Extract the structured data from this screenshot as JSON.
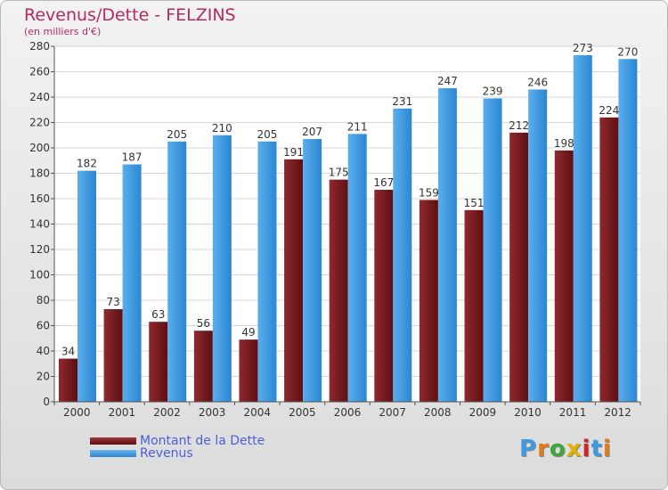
{
  "title": "Revenus/Dette - FELZINS",
  "subtitle": "(en milliers d'€)",
  "logo": "Proxiti",
  "colors": {
    "dette": "#7a1e20",
    "revenus": "#3d9be3",
    "title": "#b52a62",
    "legend_text": "#4a60d8"
  },
  "chart_data": {
    "type": "bar",
    "title": "Revenus/Dette - FELZINS",
    "subtitle": "(en milliers d'€)",
    "categories": [
      "2000",
      "2001",
      "2002",
      "2003",
      "2004",
      "2005",
      "2006",
      "2007",
      "2008",
      "2009",
      "2010",
      "2011",
      "2012"
    ],
    "series": [
      {
        "name": "Montant de la Dette",
        "values": [
          34,
          73,
          63,
          56,
          49,
          191,
          175,
          167,
          159,
          151,
          212,
          198,
          224
        ]
      },
      {
        "name": "Revenus",
        "values": [
          182,
          187,
          205,
          210,
          205,
          207,
          211,
          231,
          247,
          239,
          246,
          273,
          270
        ]
      }
    ],
    "ylim": [
      0,
      280
    ],
    "yticks": [
      0,
      20,
      40,
      60,
      80,
      100,
      120,
      140,
      160,
      180,
      200,
      220,
      240,
      260,
      280
    ],
    "grid": true,
    "legend": "bottom-left",
    "data_labels": true
  }
}
